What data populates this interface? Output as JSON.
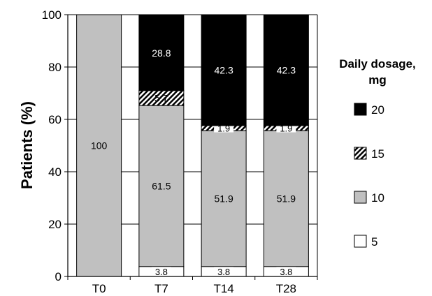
{
  "chart_data": {
    "type": "bar",
    "stacked": true,
    "categories": [
      "T0",
      "T7",
      "T14",
      "T28"
    ],
    "series": [
      {
        "name": "5",
        "values": [
          0,
          3.8,
          3.8,
          3.8
        ],
        "labels": [
          "",
          "3.8",
          "3.8",
          "3.8"
        ],
        "color": "#ffffff"
      },
      {
        "name": "10",
        "values": [
          100,
          61.5,
          51.9,
          51.9
        ],
        "labels": [
          "100",
          "61.5",
          "51.9",
          "51.9"
        ],
        "color": "#c0c0c0"
      },
      {
        "name": "15",
        "values": [
          0,
          5.7,
          1.9,
          1.9
        ],
        "labels": [
          "",
          "5.7",
          "1.9",
          "1.9"
        ],
        "color": "hatch"
      },
      {
        "name": "20",
        "values": [
          0,
          28.8,
          42.3,
          42.3
        ],
        "labels": [
          "",
          "28.8",
          "42.3",
          "42.3"
        ],
        "color": "#000000"
      }
    ],
    "ylabel": "Patients (%)",
    "xlabel": "",
    "ylim": [
      0,
      100
    ],
    "yticks": [
      0,
      20,
      40,
      60,
      80,
      100
    ],
    "grid": true,
    "legend": {
      "title": "Daily dosage, mg",
      "title_lines": [
        "Daily dosage,",
        "mg"
      ],
      "position": "right",
      "order": [
        "20",
        "15",
        "10",
        "5"
      ]
    }
  }
}
